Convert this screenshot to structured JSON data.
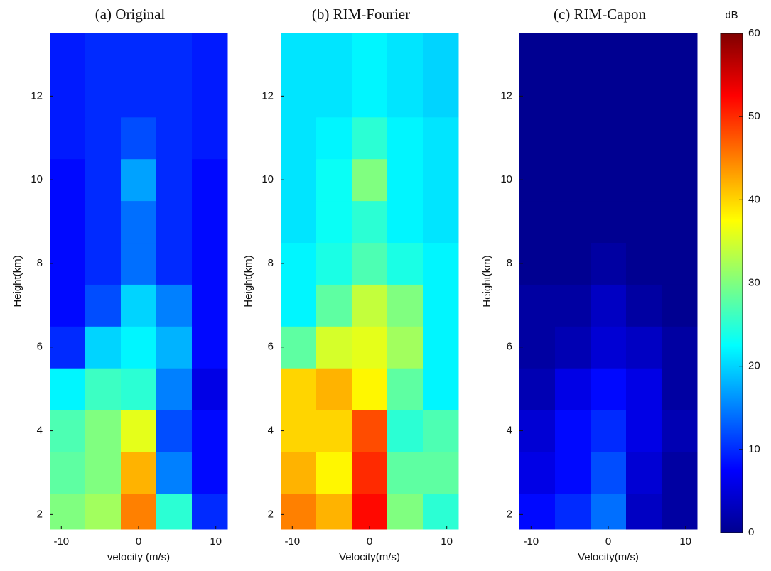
{
  "chart_data": [
    {
      "type": "heatmap",
      "title": "(a)   Original",
      "x_label": "velocity (m/s)",
      "y_label": "Height(km)",
      "xlim": [
        -11.5,
        11.5
      ],
      "xticks": [
        -10,
        0,
        10
      ],
      "ylim": [
        1.65,
        13.5
      ],
      "yticks": [
        2,
        4,
        6,
        8,
        10,
        12
      ],
      "xbins": [
        -11.5,
        -6.9,
        -2.3,
        2.3,
        6.9,
        11.5
      ],
      "ybins": [
        1.65,
        2.5,
        3.5,
        4.5,
        5.5,
        6.5,
        7.5,
        8.5,
        9.5,
        10.5,
        11.5,
        13.5
      ],
      "z": [
        [
          30,
          32,
          45,
          25,
          10
        ],
        [
          28,
          30,
          42,
          15,
          8
        ],
        [
          27,
          30,
          36,
          12,
          8
        ],
        [
          22,
          26,
          25,
          15,
          6
        ],
        [
          10,
          20,
          22,
          18,
          8
        ],
        [
          8,
          12,
          20,
          15,
          8
        ],
        [
          8,
          10,
          14,
          10,
          8
        ],
        [
          8,
          10,
          14,
          10,
          8
        ],
        [
          8,
          10,
          17,
          10,
          8
        ],
        [
          9,
          10,
          12,
          10,
          9
        ],
        [
          9,
          10,
          10,
          10,
          9
        ]
      ]
    },
    {
      "type": "heatmap",
      "title": "(b)  RIM-Fourier",
      "x_label": "Velocity(m/s)",
      "y_label": "Height(km)",
      "xlim": [
        -11.5,
        11.5
      ],
      "xticks": [
        -10,
        0,
        10
      ],
      "ylim": [
        1.65,
        13.5
      ],
      "yticks": [
        2,
        4,
        6,
        8,
        10,
        12
      ],
      "xbins": [
        -11.5,
        -6.9,
        -2.3,
        2.3,
        6.9,
        11.5
      ],
      "ybins": [
        1.65,
        2.5,
        3.5,
        4.5,
        5.5,
        6.5,
        7.5,
        8.5,
        9.5,
        10.5,
        11.5,
        13.5
      ],
      "z": [
        [
          45,
          42,
          52,
          30,
          25
        ],
        [
          42,
          38,
          50,
          28,
          28
        ],
        [
          40,
          40,
          48,
          25,
          27
        ],
        [
          40,
          42,
          38,
          28,
          22
        ],
        [
          28,
          35,
          36,
          32,
          22
        ],
        [
          22,
          28,
          34,
          30,
          22
        ],
        [
          22,
          24,
          27,
          24,
          22
        ],
        [
          21,
          23,
          25,
          22,
          21
        ],
        [
          21,
          23,
          30,
          22,
          21
        ],
        [
          21,
          22,
          25,
          22,
          21
        ],
        [
          21,
          21,
          22,
          21,
          20
        ]
      ]
    },
    {
      "type": "heatmap",
      "title": "(c)  RIM-Capon",
      "x_label": "Velocity(m/s)",
      "y_label": "Height(km)",
      "xlim": [
        -11.5,
        11.5
      ],
      "xticks": [
        -10,
        0,
        10
      ],
      "ylim": [
        1.65,
        13.5
      ],
      "yticks": [
        2,
        4,
        6,
        8,
        10,
        12
      ],
      "xbins": [
        -11.5,
        -6.9,
        -2.3,
        2.3,
        6.9,
        11.5
      ],
      "ybins": [
        1.65,
        2.5,
        3.5,
        4.5,
        5.5,
        6.5,
        7.5,
        8.5,
        9.5,
        10.5,
        11.5,
        13.5
      ],
      "z": [
        [
          8,
          10,
          14,
          4,
          2
        ],
        [
          6,
          8,
          12,
          5,
          2
        ],
        [
          5,
          8,
          10,
          6,
          3
        ],
        [
          3,
          6,
          8,
          6,
          2
        ],
        [
          2,
          3,
          5,
          4,
          2
        ],
        [
          2,
          2,
          4,
          2,
          1
        ],
        [
          1,
          1,
          2,
          1,
          1
        ],
        [
          1,
          1,
          1,
          1,
          1
        ],
        [
          1,
          1,
          1,
          1,
          1
        ],
        [
          1,
          1,
          1,
          1,
          1
        ],
        [
          1,
          1,
          1,
          1,
          1
        ]
      ]
    }
  ],
  "colorbar": {
    "label": "dB",
    "colormap": "jet",
    "lim": [
      0,
      60
    ],
    "ticks": [
      0,
      10,
      20,
      30,
      40,
      50,
      60
    ]
  }
}
